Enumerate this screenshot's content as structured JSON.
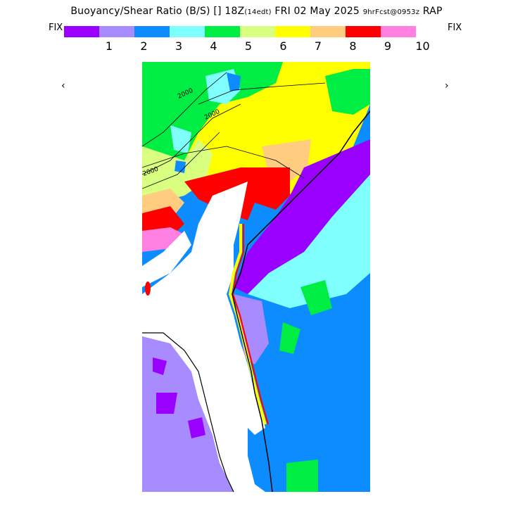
{
  "header": {
    "title_main": "Buoyancy/Shear Ratio (B/S)",
    "title_box": "[]",
    "title_time": "18Z",
    "title_local": "(14edt)",
    "title_date": "FRI 02 May 2025",
    "title_fcst": "9hrFcst@0953z",
    "title_model": "RAP"
  },
  "colorbar": {
    "fix_left": "FIX",
    "fix_right": "FIX",
    "prev": "‹",
    "next": "›",
    "colors": [
      "#9a00ff",
      "#a88cff",
      "#0d8cff",
      "#80ffff",
      "#00ee44",
      "#d9ff80",
      "#ffff00",
      "#ffcc80",
      "#ff0000",
      "#ff80e0"
    ],
    "tick_labels": [
      "1",
      "2",
      "3",
      "4",
      "5",
      "6",
      "7",
      "8",
      "9",
      "10"
    ]
  },
  "map": {
    "contour_labels": [
      "2000",
      "2000",
      "2000"
    ],
    "land_color": "#ffffff",
    "boundary_color": "#000000"
  }
}
